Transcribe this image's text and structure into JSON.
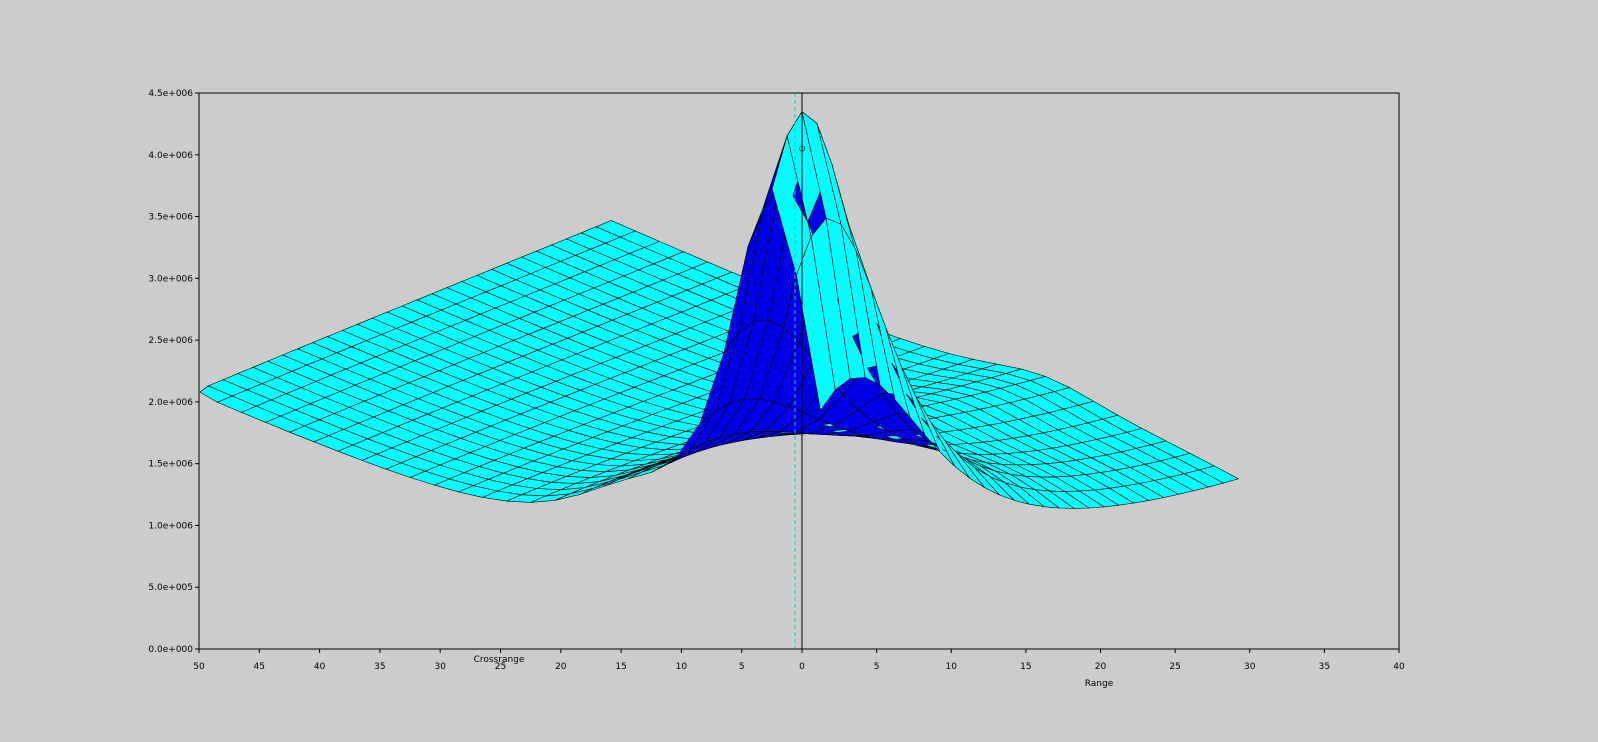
{
  "chart_data": {
    "type": "surface",
    "z_axis": {
      "range": [
        0,
        4500000
      ],
      "ticks": [
        0,
        500000,
        1000000,
        1500000,
        2000000,
        2500000,
        3000000,
        3500000,
        4000000,
        4500000
      ],
      "tick_labels": [
        "0.0e+000",
        "5.0e+005",
        "1.0e+006",
        "1.5e+006",
        "2.0e+006",
        "2.5e+006",
        "3.0e+006",
        "3.5e+006",
        "4.0e+006",
        "4.5e+006"
      ]
    },
    "crossrange_axis": {
      "label": "Crossrange",
      "ticks": [
        50,
        45,
        40,
        35,
        30,
        25,
        20,
        15,
        10,
        5,
        0
      ],
      "tick_labels": [
        "50",
        "45",
        "40",
        "35",
        "30",
        "25",
        "20",
        "15",
        "10",
        "5",
        "0"
      ]
    },
    "range_axis": {
      "label": "Range",
      "ticks": [
        5,
        10,
        15,
        20,
        25,
        30,
        35,
        40
      ],
      "tick_labels": [
        "5",
        "10",
        "15",
        "20",
        "25",
        "30",
        "35",
        "40"
      ]
    },
    "peak": {
      "crossrange": 0,
      "range": 0,
      "value": 4050000
    },
    "colors": {
      "background": "#cccccc",
      "top_surface": "#0000e6",
      "under_surface": "#00ffff",
      "mesh": "#000000",
      "cursor": "#00cccc"
    }
  }
}
